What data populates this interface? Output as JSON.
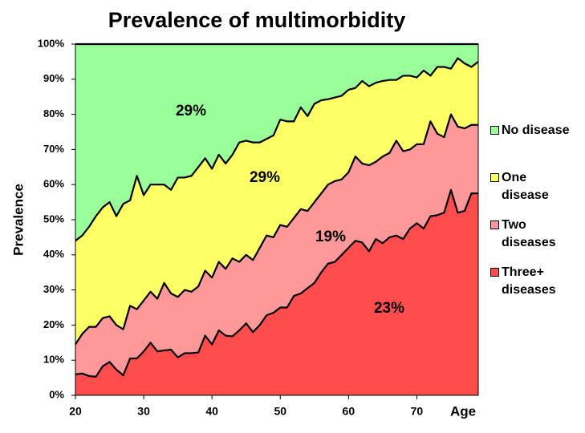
{
  "chart_data": {
    "type": "stacked-area",
    "title": "Prevalence of multimorbidity",
    "y_label": "Prevalence",
    "x_label": "Age",
    "x": [
      20,
      21,
      22,
      23,
      24,
      25,
      26,
      27,
      28,
      29,
      30,
      31,
      32,
      33,
      34,
      35,
      36,
      37,
      38,
      39,
      40,
      41,
      42,
      43,
      44,
      45,
      46,
      47,
      48,
      49,
      50,
      51,
      52,
      53,
      54,
      55,
      56,
      57,
      58,
      59,
      60,
      61,
      62,
      63,
      64,
      65,
      66,
      67,
      68,
      69,
      70,
      71,
      72,
      73,
      74,
      75,
      76,
      77,
      78,
      79
    ],
    "xlim": [
      20,
      79
    ],
    "xticks": [
      20,
      30,
      40,
      50,
      60,
      70
    ],
    "ylim": [
      0,
      100
    ],
    "yticks": [
      {
        "value": 0,
        "label": "0%"
      },
      {
        "value": 10,
        "label": "10%"
      },
      {
        "value": 20,
        "label": "20%"
      },
      {
        "value": 30,
        "label": "30%"
      },
      {
        "value": 40,
        "label": "40%"
      },
      {
        "value": 50,
        "label": "50%"
      },
      {
        "value": 60,
        "label": "60%"
      },
      {
        "value": 70,
        "label": "70%"
      },
      {
        "value": 80,
        "label": "80%"
      },
      {
        "value": 90,
        "label": "90%"
      },
      {
        "value": 100,
        "label": "100%"
      }
    ],
    "series": [
      {
        "name": "Three+ diseases",
        "color": "#ff4d4d",
        "values": [
          6,
          6.2,
          5.5,
          5.3,
          8.3,
          9.5,
          7.3,
          5.7,
          10.5,
          10.5,
          12.5,
          15,
          12.5,
          12.8,
          13,
          10.8,
          12,
          12,
          12.2,
          17,
          14.5,
          18.5,
          17,
          16.8,
          18.5,
          20.5,
          18,
          20,
          22.8,
          23.5,
          25,
          25,
          28.3,
          29,
          30.5,
          32,
          35,
          37.5,
          38,
          40,
          42,
          44,
          43.5,
          41,
          44.5,
          43.3,
          45,
          45.5,
          44.5,
          47.5,
          49,
          47.5,
          51,
          51.3,
          52,
          58.5,
          52,
          52.5,
          57.5,
          57.5
        ]
      },
      {
        "name": "Two diseases",
        "color": "#ff9999",
        "values": [
          8.5,
          11.3,
          14,
          14.2,
          13.7,
          13,
          12.7,
          13.1,
          15,
          14,
          14.5,
          14.5,
          15,
          19.2,
          16,
          17.2,
          18,
          17.5,
          18.8,
          18.5,
          19,
          19.5,
          19,
          22.2,
          19.5,
          19.5,
          20.5,
          22,
          22.7,
          21.5,
          23.5,
          23,
          22.2,
          24,
          22,
          23,
          22.5,
          22.5,
          23,
          21.5,
          21.5,
          24,
          22.5,
          24.5,
          22,
          24.7,
          24,
          27,
          25,
          22.5,
          22.5,
          24,
          27,
          23.2,
          21.5,
          21.5,
          24.5,
          23.5,
          19.5,
          19.5
        ]
      },
      {
        "name": "One disease",
        "color": "#ffff66",
        "values": [
          29.5,
          28,
          28.5,
          31.5,
          31.5,
          32.5,
          31,
          35.7,
          30,
          38,
          30,
          30.5,
          32.5,
          28,
          29.5,
          34,
          32,
          33,
          34,
          32,
          31,
          30.5,
          30,
          29.5,
          34,
          32.5,
          33.5,
          30,
          27.5,
          29,
          30,
          30,
          27.5,
          29,
          27,
          28,
          26.5,
          24.3,
          23.8,
          23.8,
          23.5,
          19.5,
          23.5,
          22.5,
          22.5,
          21.5,
          20.8,
          17.3,
          21.5,
          21,
          19,
          21,
          13,
          19,
          20,
          13,
          19.5,
          18.5,
          16.5,
          18
        ]
      },
      {
        "name": "No disease",
        "color": "#99ff99",
        "values": [
          56,
          54.5,
          52,
          49,
          46.5,
          45,
          49,
          45.5,
          44.5,
          37.5,
          43,
          40,
          40,
          40,
          41.5,
          38,
          38,
          37.5,
          35,
          32.5,
          35.5,
          31.5,
          34,
          31.5,
          28,
          27.5,
          28,
          28,
          27,
          26,
          21.5,
          22,
          22,
          18,
          20.5,
          17,
          16,
          15.7,
          15.2,
          14.7,
          13,
          12.5,
          10.5,
          12,
          11,
          10.5,
          10.2,
          10.2,
          9,
          9,
          9.5,
          7.5,
          9,
          6.5,
          6.5,
          7,
          4,
          5.5,
          6.5,
          5
        ]
      }
    ],
    "annotations": [
      "29%",
      "29%",
      "19%",
      "23%"
    ]
  }
}
